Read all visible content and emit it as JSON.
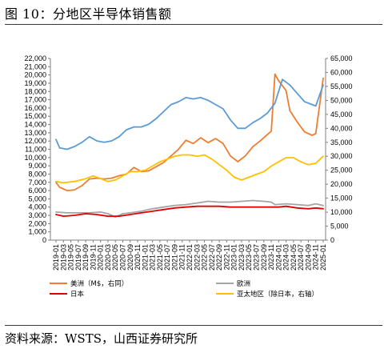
{
  "page": {
    "title": "图 10：分地区半导体销售额",
    "source": "资料来源：WSTS，山西证券研究所"
  },
  "chart_data": {
    "type": "line",
    "xlabel": "",
    "ylabel": "",
    "y_left": {
      "lim": [
        0,
        22000
      ],
      "ticks": [
        0,
        1000,
        2000,
        3000,
        4000,
        5000,
        6000,
        7000,
        8000,
        9000,
        10000,
        11000,
        12000,
        13000,
        14000,
        15000,
        16000,
        17000,
        18000,
        19000,
        20000,
        21000,
        22000
      ]
    },
    "y_right": {
      "lim": [
        0,
        65000
      ],
      "ticks": [
        0,
        5000,
        10000,
        15000,
        20000,
        25000,
        30000,
        35000,
        40000,
        45000,
        50000,
        55000,
        60000,
        65000
      ]
    },
    "x_ticks": [
      "2019-01",
      "2019-03",
      "2019-05",
      "2019-07",
      "2019-09",
      "2019-11",
      "2020-01",
      "2020-03",
      "2020-05",
      "2020-07",
      "2020-09",
      "2020-11",
      "2021-01",
      "2021-03",
      "2021-05",
      "2021-07",
      "2021-09",
      "2021-11",
      "2022-01",
      "2022-03",
      "2022-05",
      "2022-07",
      "2022-09",
      "2022-11",
      "2023-01",
      "2023-03",
      "2023-05",
      "2023-07",
      "2023-09",
      "2023-11",
      "2024-01",
      "2024-03",
      "2024-05",
      "2024-07",
      "2024-09",
      "2024-11",
      "2025-01"
    ],
    "legend_placement": "bottom",
    "grid": false,
    "series": [
      {
        "name": "美洲（M$，右同）",
        "axis": "left",
        "color": "#ED7D31",
        "points": [
          [
            "2019-01",
            7000
          ],
          [
            "2019-02",
            6400
          ],
          [
            "2019-04",
            6000
          ],
          [
            "2019-06",
            6100
          ],
          [
            "2019-08",
            6600
          ],
          [
            "2019-10",
            7400
          ],
          [
            "2019-12",
            7500
          ],
          [
            "2020-02",
            7400
          ],
          [
            "2020-04",
            7500
          ],
          [
            "2020-06",
            7800
          ],
          [
            "2020-08",
            8000
          ],
          [
            "2020-10",
            8800
          ],
          [
            "2020-12",
            8300
          ],
          [
            "2021-02",
            8400
          ],
          [
            "2021-04",
            8900
          ],
          [
            "2021-06",
            9400
          ],
          [
            "2021-08",
            10200
          ],
          [
            "2021-10",
            11000
          ],
          [
            "2021-12",
            12100
          ],
          [
            "2022-02",
            11700
          ],
          [
            "2022-04",
            12400
          ],
          [
            "2022-06",
            11800
          ],
          [
            "2022-08",
            12300
          ],
          [
            "2022-10",
            11700
          ],
          [
            "2022-12",
            10200
          ],
          [
            "2023-02",
            9500
          ],
          [
            "2023-04",
            10200
          ],
          [
            "2023-06",
            11300
          ],
          [
            "2023-08",
            12000
          ],
          [
            "2023-10",
            12800
          ],
          [
            "2023-11",
            13200
          ],
          [
            "2023-12",
            20100
          ],
          [
            "2024-01",
            19300
          ],
          [
            "2024-03",
            18100
          ],
          [
            "2024-04",
            15700
          ],
          [
            "2024-06",
            14300
          ],
          [
            "2024-08",
            13100
          ],
          [
            "2024-10",
            12700
          ],
          [
            "2024-11",
            12900
          ],
          [
            "2025-01",
            19600
          ]
        ]
      },
      {
        "name": "欧洲",
        "axis": "left",
        "color": "#A5A5A5",
        "points": [
          [
            "2019-01",
            3400
          ],
          [
            "2019-04",
            3300
          ],
          [
            "2019-07",
            3300
          ],
          [
            "2019-10",
            3300
          ],
          [
            "2020-01",
            3400
          ],
          [
            "2020-03",
            3200
          ],
          [
            "2020-05",
            2800
          ],
          [
            "2020-07",
            3200
          ],
          [
            "2020-09",
            3300
          ],
          [
            "2020-12",
            3500
          ],
          [
            "2021-03",
            3800
          ],
          [
            "2021-06",
            4000
          ],
          [
            "2021-09",
            4200
          ],
          [
            "2021-12",
            4300
          ],
          [
            "2022-03",
            4500
          ],
          [
            "2022-06",
            4700
          ],
          [
            "2022-09",
            4600
          ],
          [
            "2022-12",
            4600
          ],
          [
            "2023-03",
            4700
          ],
          [
            "2023-06",
            4800
          ],
          [
            "2023-09",
            4700
          ],
          [
            "2023-11",
            4600
          ],
          [
            "2023-12",
            4300
          ],
          [
            "2024-03",
            4400
          ],
          [
            "2024-06",
            4300
          ],
          [
            "2024-09",
            4200
          ],
          [
            "2024-11",
            4400
          ],
          [
            "2025-01",
            4200
          ]
        ]
      },
      {
        "name": "日本",
        "axis": "left",
        "color": "#E00000",
        "points": [
          [
            "2019-01",
            3100
          ],
          [
            "2019-03",
            2900
          ],
          [
            "2019-06",
            3000
          ],
          [
            "2019-09",
            3200
          ],
          [
            "2019-12",
            3100
          ],
          [
            "2020-03",
            2900
          ],
          [
            "2020-06",
            2900
          ],
          [
            "2020-09",
            3100
          ],
          [
            "2020-12",
            3300
          ],
          [
            "2021-03",
            3500
          ],
          [
            "2021-06",
            3700
          ],
          [
            "2021-09",
            3900
          ],
          [
            "2021-12",
            4000
          ],
          [
            "2022-03",
            4100
          ],
          [
            "2022-06",
            4100
          ],
          [
            "2022-09",
            4100
          ],
          [
            "2022-12",
            4000
          ],
          [
            "2023-03",
            4000
          ],
          [
            "2023-06",
            4000
          ],
          [
            "2023-09",
            4000
          ],
          [
            "2023-11",
            4000
          ],
          [
            "2024-01",
            4000
          ],
          [
            "2024-03",
            4100
          ],
          [
            "2024-06",
            3900
          ],
          [
            "2024-09",
            3800
          ],
          [
            "2024-11",
            3900
          ],
          [
            "2025-01",
            3800
          ]
        ]
      },
      {
        "name": "亚太地区（除日本，右轴）",
        "axis": "right",
        "color": "#FFC000",
        "points": [
          [
            "2019-01",
            21000
          ],
          [
            "2019-03",
            20500
          ],
          [
            "2019-06",
            21000
          ],
          [
            "2019-09",
            22000
          ],
          [
            "2019-11",
            23000
          ],
          [
            "2020-01",
            22000
          ],
          [
            "2020-03",
            21000
          ],
          [
            "2020-05",
            21500
          ],
          [
            "2020-07",
            23000
          ],
          [
            "2020-09",
            24500
          ],
          [
            "2020-11",
            24500
          ],
          [
            "2021-01",
            25000
          ],
          [
            "2021-03",
            26500
          ],
          [
            "2021-05",
            28000
          ],
          [
            "2021-07",
            29000
          ],
          [
            "2021-09",
            30000
          ],
          [
            "2021-11",
            30500
          ],
          [
            "2022-01",
            30500
          ],
          [
            "2022-03",
            30000
          ],
          [
            "2022-05",
            30500
          ],
          [
            "2022-07",
            29000
          ],
          [
            "2022-09",
            27000
          ],
          [
            "2022-11",
            25000
          ],
          [
            "2023-01",
            22500
          ],
          [
            "2023-03",
            21500
          ],
          [
            "2023-05",
            22500
          ],
          [
            "2023-07",
            23500
          ],
          [
            "2023-09",
            24500
          ],
          [
            "2023-11",
            26500
          ],
          [
            "2024-01",
            28000
          ],
          [
            "2024-03",
            29500
          ],
          [
            "2024-05",
            29500
          ],
          [
            "2024-07",
            28000
          ],
          [
            "2024-09",
            27000
          ],
          [
            "2024-11",
            27500
          ],
          [
            "2025-01",
            30000
          ]
        ]
      },
      {
        "name": "",
        "axis": "right",
        "color": "#5B9BD5",
        "points": [
          [
            "2019-01",
            36000
          ],
          [
            "2019-02",
            33000
          ],
          [
            "2019-04",
            32500
          ],
          [
            "2019-06",
            33500
          ],
          [
            "2019-08",
            35000
          ],
          [
            "2019-10",
            37000
          ],
          [
            "2019-12",
            35500
          ],
          [
            "2020-02",
            35000
          ],
          [
            "2020-04",
            35500
          ],
          [
            "2020-06",
            37000
          ],
          [
            "2020-08",
            39500
          ],
          [
            "2020-10",
            40500
          ],
          [
            "2020-12",
            40500
          ],
          [
            "2021-02",
            41500
          ],
          [
            "2021-04",
            43500
          ],
          [
            "2021-06",
            46000
          ],
          [
            "2021-08",
            48500
          ],
          [
            "2021-10",
            49500
          ],
          [
            "2021-12",
            51000
          ],
          [
            "2022-02",
            50500
          ],
          [
            "2022-04",
            51000
          ],
          [
            "2022-06",
            50000
          ],
          [
            "2022-08",
            48500
          ],
          [
            "2022-10",
            47000
          ],
          [
            "2022-12",
            43000
          ],
          [
            "2023-02",
            40000
          ],
          [
            "2023-04",
            40000
          ],
          [
            "2023-06",
            42000
          ],
          [
            "2023-08",
            43500
          ],
          [
            "2023-10",
            45500
          ],
          [
            "2023-12",
            49000
          ],
          [
            "2024-02",
            57500
          ],
          [
            "2024-04",
            55500
          ],
          [
            "2024-06",
            52500
          ],
          [
            "2024-08",
            49500
          ],
          [
            "2024-10",
            48500
          ],
          [
            "2024-11",
            48000
          ],
          [
            "2025-01",
            55500
          ]
        ]
      }
    ]
  }
}
